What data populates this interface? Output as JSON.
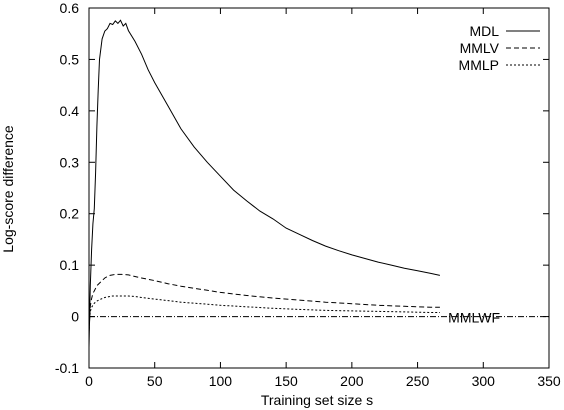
{
  "chart_data": {
    "type": "line",
    "xlabel": "Training set size s",
    "ylabel": "Log-score difference",
    "xlim": [
      0,
      350
    ],
    "ylim": [
      -0.1,
      0.6
    ],
    "xticks": [
      "0",
      "50",
      "100",
      "150",
      "200",
      "250",
      "300",
      "350"
    ],
    "yticks": [
      "-0.1",
      "0",
      "0.1",
      "0.2",
      "0.3",
      "0.4",
      "0.5",
      "0.6"
    ],
    "grid": false,
    "legend_position": "top-right",
    "annotations": [
      {
        "text": "MMLWF",
        "x": 293,
        "y": 0.0
      }
    ],
    "series": [
      {
        "name": "MDL",
        "style": "solid",
        "x": [
          0,
          1,
          2,
          3,
          4,
          5,
          6,
          7,
          8,
          10,
          12,
          14,
          16,
          18,
          20,
          22,
          24,
          26,
          28,
          30,
          35,
          40,
          45,
          50,
          60,
          70,
          80,
          90,
          100,
          110,
          120,
          130,
          140,
          150,
          160,
          170,
          180,
          190,
          200,
          210,
          220,
          230,
          240,
          250,
          260,
          267
        ],
        "y": [
          -0.06,
          0.06,
          0.13,
          0.18,
          0.21,
          0.28,
          0.37,
          0.44,
          0.5,
          0.54,
          0.555,
          0.56,
          0.57,
          0.568,
          0.575,
          0.57,
          0.576,
          0.565,
          0.57,
          0.556,
          0.535,
          0.51,
          0.48,
          0.455,
          0.41,
          0.365,
          0.33,
          0.3,
          0.273,
          0.246,
          0.225,
          0.205,
          0.19,
          0.172,
          0.16,
          0.148,
          0.137,
          0.128,
          0.12,
          0.113,
          0.106,
          0.1,
          0.094,
          0.089,
          0.084,
          0.08
        ]
      },
      {
        "name": "MMLV",
        "style": "dash",
        "x": [
          0,
          1,
          2,
          3,
          4,
          5,
          6,
          8,
          10,
          12,
          14,
          16,
          18,
          20,
          25,
          30,
          35,
          40,
          50,
          60,
          70,
          80,
          90,
          100,
          120,
          140,
          160,
          180,
          200,
          220,
          240,
          260,
          267
        ],
        "y": [
          -0.03,
          0.02,
          0.035,
          0.045,
          0.05,
          0.055,
          0.06,
          0.065,
          0.07,
          0.075,
          0.078,
          0.08,
          0.081,
          0.082,
          0.082,
          0.081,
          0.078,
          0.075,
          0.07,
          0.064,
          0.059,
          0.055,
          0.051,
          0.047,
          0.041,
          0.036,
          0.032,
          0.028,
          0.025,
          0.022,
          0.02,
          0.018,
          0.018
        ]
      },
      {
        "name": "MMLP",
        "style": "dot",
        "x": [
          0,
          1,
          2,
          3,
          4,
          5,
          6,
          8,
          10,
          12,
          14,
          16,
          18,
          20,
          25,
          30,
          35,
          40,
          50,
          60,
          70,
          80,
          90,
          100,
          120,
          140,
          160,
          180,
          200,
          220,
          240,
          260,
          267
        ],
        "y": [
          -0.02,
          0.01,
          0.018,
          0.022,
          0.026,
          0.028,
          0.03,
          0.033,
          0.035,
          0.037,
          0.038,
          0.039,
          0.04,
          0.04,
          0.04,
          0.04,
          0.039,
          0.037,
          0.034,
          0.031,
          0.028,
          0.026,
          0.024,
          0.022,
          0.019,
          0.016,
          0.014,
          0.012,
          0.011,
          0.01,
          0.009,
          0.008,
          0.008
        ]
      },
      {
        "name": "MMLWF",
        "style": "dashdot",
        "legend": false,
        "x": [
          0,
          350
        ],
        "y": [
          0,
          0
        ]
      }
    ]
  }
}
